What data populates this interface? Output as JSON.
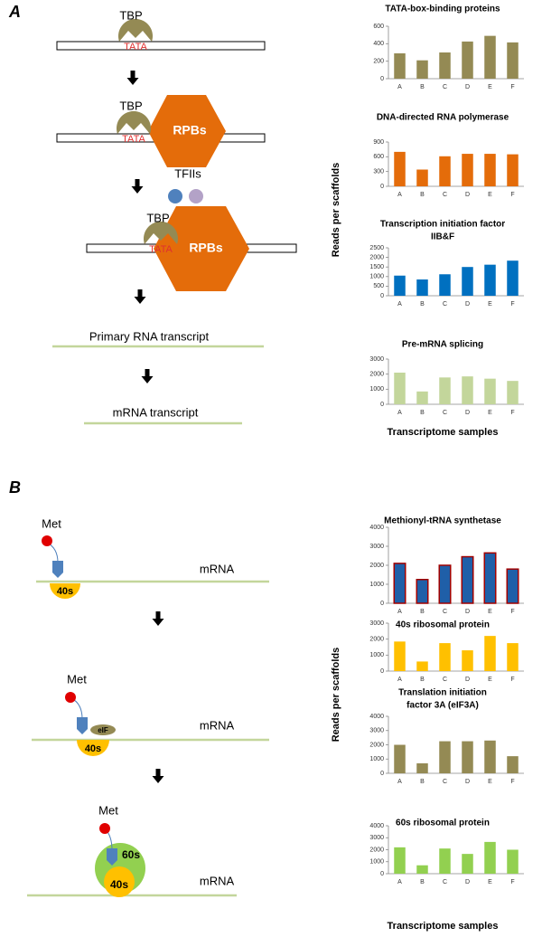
{
  "panels": [
    {
      "label": "A",
      "ylabel": "Reads per scaffolds",
      "xlabel": "Transcriptome samples"
    },
    {
      "label": "B",
      "ylabel": "Reads per scaffolds",
      "xlabel": "Transcriptome samples"
    }
  ],
  "diagram": {
    "tbp": "TBP",
    "tata": "TATA",
    "rpbs": "RPBs",
    "tfiis": "TFIIs",
    "primary": "Primary RNA transcript",
    "mrna_transcript": "mRNA transcript",
    "met": "Met",
    "s40": "40s",
    "mrna": "mRNA",
    "eif": "eIF",
    "s60": "60s"
  },
  "chart_data": [
    {
      "type": "bar",
      "title": "TATA-box-binding  proteins",
      "categories": [
        "A",
        "B",
        "C",
        "D",
        "E",
        "F"
      ],
      "values": [
        290,
        210,
        300,
        425,
        490,
        415
      ],
      "color": "#948a54",
      "ylim": [
        0,
        600
      ],
      "yticks": [
        0,
        200,
        400,
        600
      ]
    },
    {
      "type": "bar",
      "title": "DNA-directed RNA polymerase",
      "categories": [
        "A",
        "B",
        "C",
        "D",
        "E",
        "F"
      ],
      "values": [
        700,
        340,
        610,
        660,
        660,
        650
      ],
      "color": "#e46c0a",
      "ylim": [
        0,
        900
      ],
      "yticks": [
        0,
        300,
        600,
        900
      ]
    },
    {
      "type": "bar",
      "title": [
        "Transcription initiation factor",
        "IIB&F"
      ],
      "categories": [
        "A",
        "B",
        "C",
        "D",
        "E",
        "F"
      ],
      "values": [
        1050,
        850,
        1120,
        1500,
        1620,
        1830
      ],
      "color": "#0070c0",
      "ylim": [
        0,
        2500
      ],
      "yticks": [
        0,
        500,
        1000,
        1500,
        2000,
        2500
      ]
    },
    {
      "type": "bar",
      "title": "Pre-mRNA splicing",
      "categories": [
        "A",
        "B",
        "C",
        "D",
        "E",
        "F"
      ],
      "values": [
        2100,
        850,
        1780,
        1850,
        1700,
        1550
      ],
      "color": "#c3d69b",
      "ylim": [
        0,
        3000
      ],
      "yticks": [
        0,
        1000,
        2000,
        3000
      ]
    },
    {
      "type": "bar",
      "title": "Methionyl-tRNA synthetase",
      "categories": [
        "A",
        "B",
        "C",
        "D",
        "E",
        "F"
      ],
      "values": [
        2100,
        1250,
        2000,
        2450,
        2650,
        1800
      ],
      "color": "#1f5fa8",
      "edgecolor": "#a00000",
      "ylim": [
        0,
        4000
      ],
      "yticks": [
        0,
        1000,
        2000,
        3000,
        4000
      ]
    },
    {
      "type": "bar",
      "title": "40s ribosomal protein",
      "categories": [
        "A",
        "B",
        "C",
        "D",
        "E",
        "F"
      ],
      "values": [
        1850,
        600,
        1750,
        1300,
        2200,
        1750
      ],
      "color": "#ffc000",
      "ylim": [
        0,
        3000
      ],
      "yticks": [
        0,
        1000,
        2000,
        3000
      ]
    },
    {
      "type": "bar",
      "title": [
        "Translation initiation",
        "factor 3A (eIF3A)"
      ],
      "categories": [
        "A",
        "B",
        "C",
        "D",
        "E",
        "F"
      ],
      "values": [
        2000,
        700,
        2250,
        2250,
        2300,
        1200
      ],
      "color": "#948a54",
      "ylim": [
        0,
        4000
      ],
      "yticks": [
        0,
        1000,
        2000,
        3000,
        4000
      ]
    },
    {
      "type": "bar",
      "title": "60s ribosomal protein",
      "categories": [
        "A",
        "B",
        "C",
        "D",
        "E",
        "F"
      ],
      "values": [
        2200,
        700,
        2100,
        1650,
        2650,
        2000
      ],
      "color": "#92d050",
      "ylim": [
        0,
        4000
      ],
      "yticks": [
        0,
        1000,
        2000,
        3000,
        4000
      ]
    }
  ]
}
